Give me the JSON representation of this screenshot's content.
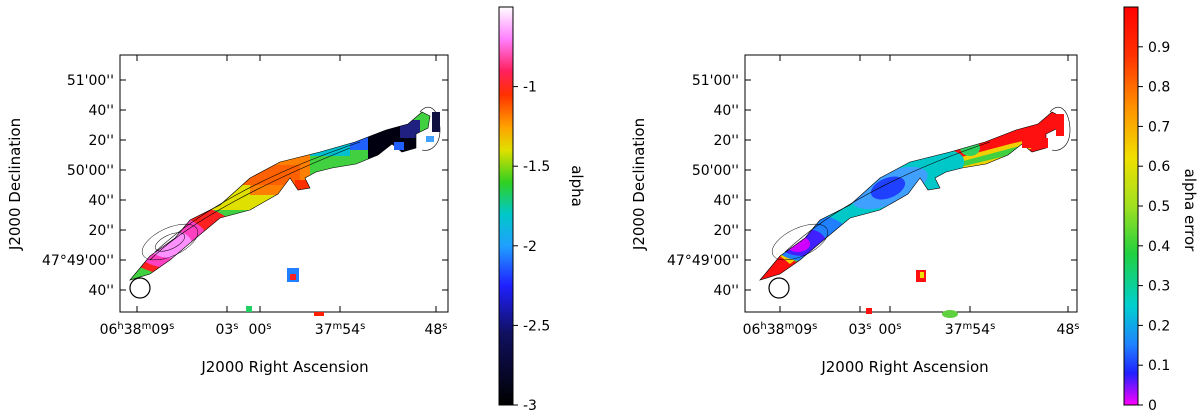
{
  "chart_data": [
    {
      "type": "heatmap",
      "xlabel": "J2000 Right Ascension",
      "ylabel": "J2000 Declination",
      "x_ticks": [
        {
          "h": "06",
          "m": "38",
          "s": "09",
          "value": "06h38m09s"
        },
        {
          "h": "",
          "m": "",
          "s": "03",
          "value": "03s"
        },
        {
          "h": "",
          "m": "",
          "s": "00",
          "value": "00s"
        },
        {
          "h": "",
          "m": "37",
          "s": "54",
          "value": "37m54s"
        },
        {
          "h": "",
          "m": "",
          "s": "48",
          "value": "48s"
        }
      ],
      "y_ticks": [
        "51'00''",
        "40''",
        "20''",
        "50'00''",
        "40''",
        "20''",
        "47°49'00''",
        "40''"
      ],
      "colorbar": {
        "label": "alpha",
        "ticks": [
          "-1",
          "-1.5",
          "-2",
          "-2.5",
          "-3"
        ],
        "tick_values": [
          -1,
          -1.5,
          -2,
          -2.5,
          -3
        ],
        "range": [
          -3,
          -0.5
        ],
        "colormap": "magenta-red-yellow-green-cyan-blue-black"
      },
      "beam": "circle",
      "contours": true
    },
    {
      "type": "heatmap",
      "xlabel": "J2000 Right Ascension",
      "ylabel": "J2000 Declination",
      "x_ticks": [
        {
          "h": "06",
          "m": "38",
          "s": "09",
          "value": "06h38m09s"
        },
        {
          "h": "",
          "m": "",
          "s": "03",
          "value": "03s"
        },
        {
          "h": "",
          "m": "",
          "s": "00",
          "value": "00s"
        },
        {
          "h": "",
          "m": "37",
          "s": "54",
          "value": "37m54s"
        },
        {
          "h": "",
          "m": "",
          "s": "48",
          "value": "48s"
        }
      ],
      "y_ticks": [
        "51'00''",
        "40''",
        "20''",
        "50'00''",
        "40''",
        "20''",
        "47°49'00''",
        "40''"
      ],
      "colorbar": {
        "label": "alpha error",
        "ticks": [
          "0.9",
          "0.8",
          "0.7",
          "0.6",
          "0.5",
          "0.4",
          "0.3",
          "0.2",
          "0.1",
          "0"
        ],
        "tick_values": [
          0.9,
          0.8,
          0.7,
          0.6,
          0.5,
          0.4,
          0.3,
          0.2,
          0.1,
          0
        ],
        "range": [
          0,
          1
        ],
        "colormap": "magenta-blue-cyan-green-yellow-orange-red"
      },
      "beam": "circle",
      "contours": true
    }
  ]
}
